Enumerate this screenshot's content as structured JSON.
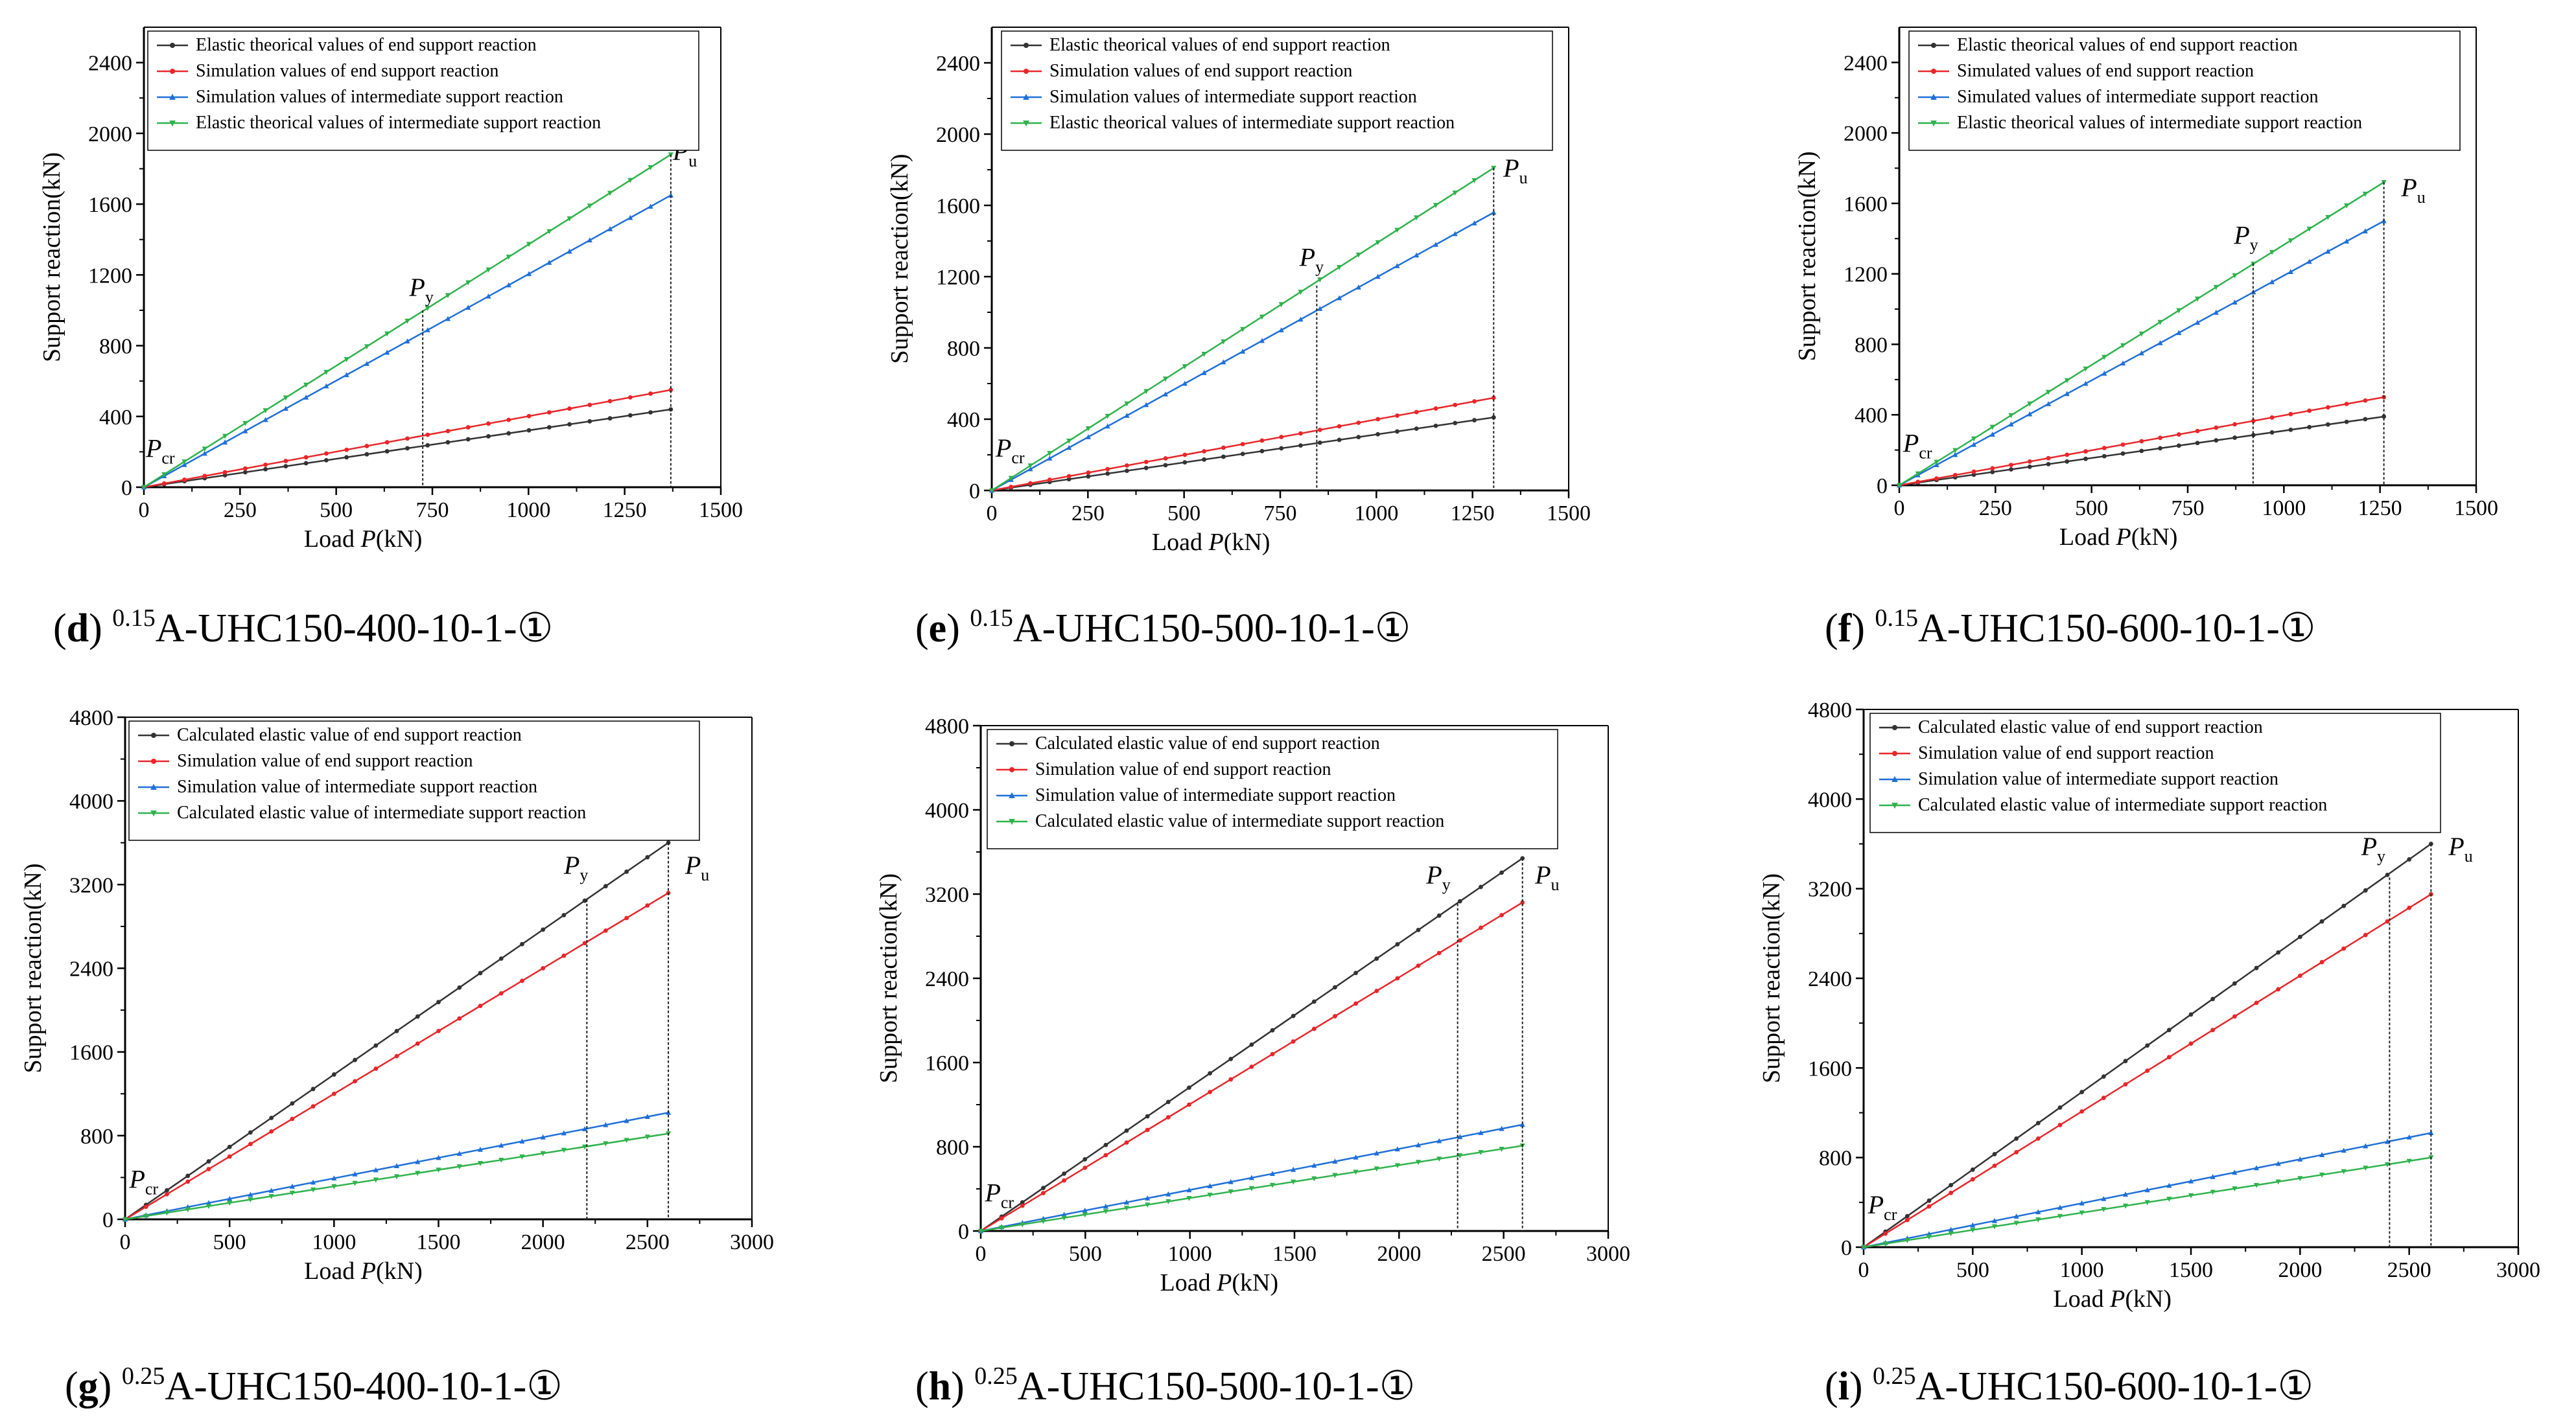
{
  "figure": {
    "colors": {
      "black": "#333333",
      "red": "#e8262a",
      "blue": "#1f6fd8",
      "green": "#2fb24c",
      "axis": "#000000",
      "marker_line": "#222222"
    }
  },
  "chart_data": [
    {
      "id": "d",
      "type": "line",
      "caption": {
        "letter": "d",
        "sup": "0.15",
        "name": "A-UHC150-400-10-1-",
        "circled": "1"
      },
      "xlabel": {
        "text": "Load ",
        "var": "P",
        "unit": "(kN)"
      },
      "ylabel": "Support reaction(kN)",
      "xlim": [
        0,
        1500
      ],
      "ylim": [
        0,
        2600
      ],
      "xticks": [
        0,
        250,
        500,
        750,
        1000,
        1250,
        1500
      ],
      "yticks": [
        0,
        400,
        800,
        1200,
        1600,
        2000,
        2400
      ],
      "legend_position": "top-left",
      "series": [
        {
          "name": "Elastic theorical values of end support reaction",
          "color": "black",
          "marker": "circle",
          "points": [
            [
              0,
              0
            ],
            [
              1370,
              440
            ]
          ]
        },
        {
          "name": "Simulation values of end support reaction",
          "color": "red",
          "marker": "circle",
          "points": [
            [
              0,
              0
            ],
            [
              1370,
              550
            ]
          ]
        },
        {
          "name": "Simulation values of intermediate support reaction",
          "color": "blue",
          "marker": "triangle",
          "points": [
            [
              0,
              0
            ],
            [
              1370,
              1650
            ]
          ]
        },
        {
          "name": "Elastic theorical values of intermediate support reaction",
          "color": "green",
          "marker": "triangle-down",
          "points": [
            [
              0,
              0
            ],
            [
              1370,
              1880
            ]
          ]
        }
      ],
      "markers": {
        "py_x": 725,
        "py_top": 1000,
        "pu_x": 1370,
        "pu_top": 1880
      },
      "annotations": [
        {
          "label": "P",
          "sub": "cr",
          "x": 5,
          "y": 170
        },
        {
          "label": "P",
          "sub": "y",
          "x": 690,
          "y": 1080
        },
        {
          "label": "P",
          "sub": "u",
          "x": 1375,
          "y": 1850
        }
      ]
    },
    {
      "id": "e",
      "type": "line",
      "caption": {
        "letter": "e",
        "sup": "0.15",
        "name": "A-UHC150-500-10-1-",
        "circled": "1"
      },
      "xlabel": {
        "text": "Load ",
        "var": "P",
        "unit": "(kN)"
      },
      "ylabel": "Support reaction(kN)",
      "xlim": [
        0,
        1500
      ],
      "ylim": [
        0,
        2600
      ],
      "xticks": [
        0,
        250,
        500,
        750,
        1000,
        1250,
        1500
      ],
      "yticks": [
        0,
        400,
        800,
        1200,
        1600,
        2000,
        2400
      ],
      "legend_position": "top-right",
      "series": [
        {
          "name": "Elastic theorical values of end support reaction",
          "color": "black",
          "marker": "circle",
          "points": [
            [
              0,
              0
            ],
            [
              1305,
              410
            ]
          ]
        },
        {
          "name": "Simulation values of end support reaction",
          "color": "red",
          "marker": "circle",
          "points": [
            [
              0,
              0
            ],
            [
              1305,
              520
            ]
          ]
        },
        {
          "name": "Simulation values of intermediate support reaction",
          "color": "blue",
          "marker": "triangle",
          "points": [
            [
              0,
              0
            ],
            [
              1305,
              1560
            ]
          ]
        },
        {
          "name": "Elastic theorical values of intermediate support reaction",
          "color": "green",
          "marker": "triangle-down",
          "points": [
            [
              0,
              0
            ],
            [
              1305,
              1810
            ]
          ]
        }
      ],
      "markers": {
        "py_x": 845,
        "py_top": 1150,
        "pu_x": 1305,
        "pu_top": 1810
      },
      "annotations": [
        {
          "label": "P",
          "sub": "cr",
          "x": 10,
          "y": 190
        },
        {
          "label": "P",
          "sub": "y",
          "x": 800,
          "y": 1260
        },
        {
          "label": "P",
          "sub": "u",
          "x": 1330,
          "y": 1760
        }
      ]
    },
    {
      "id": "f",
      "type": "line",
      "caption": {
        "letter": "f",
        "sup": "0.15",
        "name": "A-UHC150-600-10-1-",
        "circled": "1"
      },
      "xlabel": {
        "text": "Load ",
        "var": "P",
        "unit": "(kN)"
      },
      "ylabel": "Support reaction(kN)",
      "xlim": [
        0,
        1500
      ],
      "ylim": [
        0,
        2600
      ],
      "xticks": [
        0,
        250,
        500,
        750,
        1000,
        1250,
        1500
      ],
      "yticks": [
        0,
        400,
        800,
        1200,
        1600,
        2000,
        2400
      ],
      "legend_position": "top-right",
      "series": [
        {
          "name": "Elastic theorical values of end support reaction",
          "color": "black",
          "marker": "circle",
          "points": [
            [
              0,
              0
            ],
            [
              1260,
              390
            ]
          ]
        },
        {
          "name": "Simulated values of end support reaction",
          "color": "red",
          "marker": "circle",
          "points": [
            [
              0,
              0
            ],
            [
              1260,
              500
            ]
          ]
        },
        {
          "name": "Simulated values of intermediate support reaction",
          "color": "blue",
          "marker": "triangle",
          "points": [
            [
              0,
              0
            ],
            [
              1260,
              1500
            ]
          ]
        },
        {
          "name": "Elastic theorical values of intermediate support reaction",
          "color": "green",
          "marker": "triangle-down",
          "points": [
            [
              0,
              0
            ],
            [
              1260,
              1720
            ]
          ]
        }
      ],
      "markers": {
        "py_x": 920,
        "py_top": 1260,
        "pu_x": 1260,
        "pu_top": 1720
      },
      "annotations": [
        {
          "label": "P",
          "sub": "cr",
          "x": 10,
          "y": 190
        },
        {
          "label": "P",
          "sub": "y",
          "x": 870,
          "y": 1370
        },
        {
          "label": "P",
          "sub": "u",
          "x": 1305,
          "y": 1640
        }
      ]
    },
    {
      "id": "g",
      "type": "line",
      "caption": {
        "letter": "g",
        "sup": "0.25",
        "name": "A-UHC150-400-10-1-",
        "circled": "1"
      },
      "xlabel": {
        "text": "Load ",
        "var": "P",
        "unit": "(kN)"
      },
      "ylabel": "Support reaction(kN)",
      "xlim": [
        0,
        3000
      ],
      "ylim": [
        0,
        4800
      ],
      "xticks": [
        0,
        500,
        1000,
        1500,
        2000,
        2500,
        3000
      ],
      "yticks": [
        0,
        800,
        1600,
        2400,
        3200,
        4000,
        4800
      ],
      "legend_position": "top-left",
      "series": [
        {
          "name": "Calculated elastic value of end support reaction",
          "color": "black",
          "marker": "circle",
          "points": [
            [
              0,
              0
            ],
            [
              2600,
              3600
            ]
          ]
        },
        {
          "name": "Simulation value of end support reaction",
          "color": "red",
          "marker": "circle",
          "points": [
            [
              0,
              0
            ],
            [
              2600,
              3120
            ]
          ]
        },
        {
          "name": "Simulation value of intermediate support reaction",
          "color": "blue",
          "marker": "triangle",
          "points": [
            [
              0,
              0
            ],
            [
              2600,
              1020
            ]
          ]
        },
        {
          "name": "Calculated elastic value of intermediate support reaction",
          "color": "green",
          "marker": "triangle-down",
          "points": [
            [
              0,
              0
            ],
            [
              2600,
              820
            ]
          ]
        }
      ],
      "markers": {
        "py_x": 2210,
        "py_top": 3060,
        "pu_x": 2600,
        "pu_top": 3600
      },
      "annotations": [
        {
          "label": "P",
          "sub": "cr",
          "x": 20,
          "y": 300
        },
        {
          "label": "P",
          "sub": "y",
          "x": 2100,
          "y": 3300
        },
        {
          "label": "P",
          "sub": "u",
          "x": 2680,
          "y": 3300
        }
      ]
    },
    {
      "id": "h",
      "type": "line",
      "caption": {
        "letter": "h",
        "sup": "0.25",
        "name": "A-UHC150-500-10-1-",
        "circled": "1"
      },
      "xlabel": {
        "text": "Load ",
        "var": "P",
        "unit": "(kN)"
      },
      "ylabel": "Support reaction(kN)",
      "xlim": [
        0,
        3000
      ],
      "ylim": [
        0,
        4800
      ],
      "xticks": [
        0,
        500,
        1000,
        1500,
        2000,
        2500,
        3000
      ],
      "yticks": [
        0,
        800,
        1600,
        2400,
        3200,
        4000,
        4800
      ],
      "legend_position": "top-right",
      "series": [
        {
          "name": "Calculated elastic value of end support reaction",
          "color": "black",
          "marker": "circle",
          "points": [
            [
              0,
              0
            ],
            [
              2590,
              3540
            ]
          ]
        },
        {
          "name": "Simulation value of end support reaction",
          "color": "red",
          "marker": "circle",
          "points": [
            [
              0,
              0
            ],
            [
              2590,
              3120
            ]
          ]
        },
        {
          "name": "Simulation value of intermediate support reaction",
          "color": "blue",
          "marker": "triangle",
          "points": [
            [
              0,
              0
            ],
            [
              2590,
              1010
            ]
          ]
        },
        {
          "name": "Calculated elastic value of intermediate support reaction",
          "color": "green",
          "marker": "triangle-down",
          "points": [
            [
              0,
              0
            ],
            [
              2590,
              810
            ]
          ]
        }
      ],
      "markers": {
        "py_x": 2280,
        "py_top": 3110,
        "pu_x": 2590,
        "pu_top": 3540
      },
      "annotations": [
        {
          "label": "P",
          "sub": "cr",
          "x": 20,
          "y": 280
        },
        {
          "label": "P",
          "sub": "y",
          "x": 2130,
          "y": 3300
        },
        {
          "label": "P",
          "sub": "u",
          "x": 2650,
          "y": 3300
        }
      ]
    },
    {
      "id": "i",
      "type": "line",
      "caption": {
        "letter": "i",
        "sup": "0.25",
        "name": "A-UHC150-600-10-1-",
        "circled": "1"
      },
      "xlabel": {
        "text": "Load ",
        "var": "P",
        "unit": "(kN)"
      },
      "ylabel": "Support reaction(kN)",
      "xlim": [
        0,
        3000
      ],
      "ylim": [
        0,
        4800
      ],
      "xticks": [
        0,
        500,
        1000,
        1500,
        2000,
        2500,
        3000
      ],
      "yticks": [
        0,
        800,
        1600,
        2400,
        3200,
        4000,
        4800
      ],
      "legend_position": "top-right",
      "series": [
        {
          "name": "Calculated elastic value of end support reaction",
          "color": "black",
          "marker": "circle",
          "points": [
            [
              0,
              0
            ],
            [
              2600,
              3600
            ]
          ]
        },
        {
          "name": "Simulation value of end support reaction",
          "color": "red",
          "marker": "circle",
          "points": [
            [
              0,
              0
            ],
            [
              2600,
              3150
            ]
          ]
        },
        {
          "name": "Simulation value of intermediate support reaction",
          "color": "blue",
          "marker": "triangle",
          "points": [
            [
              0,
              0
            ],
            [
              2600,
              1020
            ]
          ]
        },
        {
          "name": "Calculated elastic value of intermediate support reaction",
          "color": "green",
          "marker": "triangle-down",
          "points": [
            [
              0,
              0
            ],
            [
              2600,
              800
            ]
          ]
        }
      ],
      "markers": {
        "py_x": 2410,
        "py_top": 3300,
        "pu_x": 2600,
        "pu_top": 3600
      },
      "annotations": [
        {
          "label": "P",
          "sub": "cr",
          "x": 20,
          "y": 300
        },
        {
          "label": "P",
          "sub": "y",
          "x": 2280,
          "y": 3500
        },
        {
          "label": "P",
          "sub": "u",
          "x": 2680,
          "y": 3500
        }
      ]
    }
  ]
}
